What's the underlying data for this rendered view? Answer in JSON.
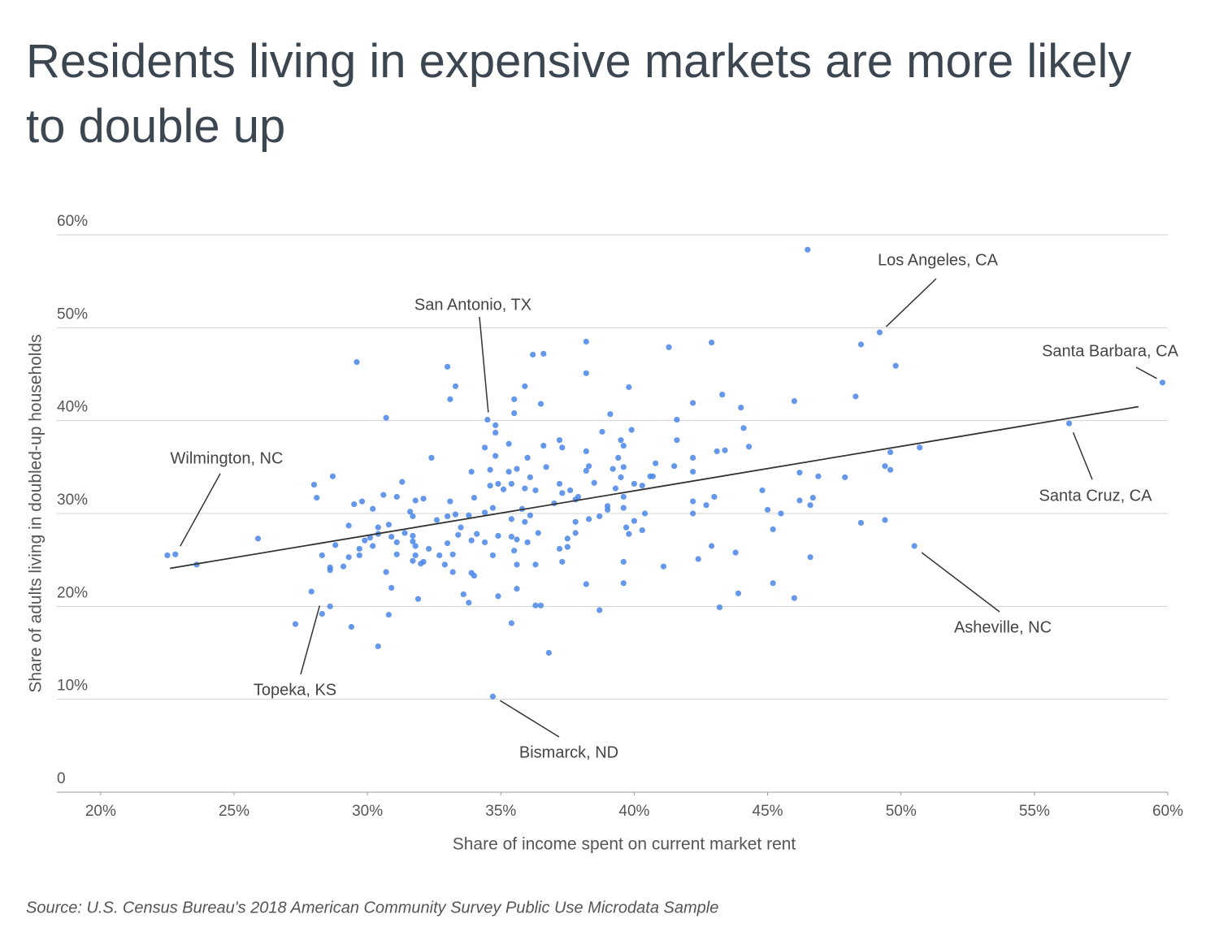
{
  "chart_data": {
    "type": "scatter",
    "title": "Residents living in expensive markets are more likely to double up",
    "x_label": "Share of income spent on current market rent",
    "y_label": "Share of adults living in doubled-up households",
    "source": "Source: U.S. Census Bureau's 2018 American Community Survey Public Use Microdata Sample",
    "xlim": [
      18.36,
      60
    ],
    "ylim": [
      0,
      60
    ],
    "xticks": [
      {
        "value": 20,
        "label": "20%"
      },
      {
        "value": 25,
        "label": "25%"
      },
      {
        "value": 30,
        "label": "30%"
      },
      {
        "value": 35,
        "label": "35%"
      },
      {
        "value": 40,
        "label": "40%"
      },
      {
        "value": 45,
        "label": "45%"
      },
      {
        "value": 50,
        "label": "50%"
      },
      {
        "value": 55,
        "label": "55%"
      },
      {
        "value": 60,
        "label": "60%"
      }
    ],
    "yticks": [
      0,
      {
        "value": 10,
        "label": "10%"
      },
      {
        "value": 20,
        "label": "20%"
      },
      {
        "value": 30,
        "label": "30%"
      },
      {
        "value": 40,
        "label": "40%"
      },
      {
        "value": 50,
        "label": "50%"
      },
      {
        "value": 60,
        "label": "60%"
      }
    ],
    "grid": true,
    "color": "#4a86e8",
    "x": [
      22.5,
      23.6,
      25.9,
      27.3,
      27.9,
      28.0,
      28.1,
      28.3,
      28.6,
      28.6,
      28.6,
      28.7,
      28.8,
      29.1,
      29.3,
      29.3,
      29.4,
      29.5,
      29.6,
      29.7,
      29.7,
      29.8,
      29.9,
      30.1,
      30.2,
      30.2,
      30.4,
      30.4,
      30.4,
      30.6,
      30.7,
      30.7,
      30.8,
      30.8,
      30.9,
      30.9,
      31.1,
      31.1,
      31.1,
      31.3,
      31.4,
      31.6,
      31.7,
      31.7,
      31.7,
      31.7,
      31.8,
      31.8,
      31.8,
      31.9,
      32.0,
      32.1,
      32.1,
      32.3,
      32.4,
      32.6,
      32.7,
      32.9,
      33.0,
      33.0,
      33.0,
      33.1,
      33.1,
      33.2,
      33.2,
      33.3,
      33.3,
      33.4,
      33.5,
      33.6,
      33.8,
      33.8,
      33.9,
      33.9,
      33.9,
      34.0,
      34.0,
      34.1,
      34.4,
      34.4,
      34.4,
      34.6,
      34.6,
      34.7,
      34.7,
      34.8,
      34.8,
      34.8,
      34.9,
      34.9,
      34.9,
      35.1,
      35.3,
      35.3,
      35.4,
      35.4,
      35.4,
      35.4,
      35.5,
      35.5,
      35.5,
      35.6,
      35.6,
      35.6,
      35.6,
      35.8,
      35.9,
      35.9,
      35.9,
      36.0,
      36.0,
      36.1,
      36.1,
      36.2,
      36.3,
      36.3,
      36.3,
      36.4,
      36.5,
      36.5,
      36.6,
      36.6,
      36.7,
      36.8,
      37.0,
      37.2,
      37.2,
      37.2,
      37.3,
      37.3,
      37.3,
      37.5,
      37.5,
      37.6,
      37.8,
      37.8,
      37.8,
      37.9,
      38.2,
      38.2,
      38.2,
      38.2,
      38.2,
      38.3,
      38.3,
      38.5,
      38.7,
      38.7,
      38.8,
      39.0,
      39.0,
      39.1,
      39.2,
      39.3,
      39.4,
      39.5,
      39.5,
      39.6,
      39.6,
      39.6,
      39.6,
      39.6,
      39.6,
      39.7,
      39.8,
      39.8,
      39.9,
      40.0,
      40.0,
      40.3,
      40.3,
      40.4,
      40.6,
      40.7,
      40.8,
      41.1,
      41.3,
      41.5,
      41.6,
      41.6,
      42.2,
      42.2,
      42.2,
      42.2,
      42.2,
      42.4,
      42.7,
      42.9,
      42.9,
      43.0,
      43.1,
      43.2,
      43.3,
      43.4,
      43.8,
      43.9,
      44.0,
      44.1,
      44.3,
      44.8,
      45.0,
      45.2,
      45.2,
      45.5,
      46.0,
      46.0,
      46.2,
      46.2,
      46.5,
      46.6,
      46.6,
      46.7,
      46.9,
      47.9,
      48.3,
      48.5,
      48.5,
      49.4,
      49.4,
      49.6,
      49.6,
      49.8,
      50.7
    ],
    "y": [
      25.5,
      24.5,
      27.3,
      18.1,
      21.6,
      33.1,
      31.7,
      25.5,
      24.2,
      23.9,
      20.0,
      34.0,
      26.6,
      24.3,
      25.3,
      28.7,
      17.8,
      31.0,
      46.3,
      26.2,
      25.5,
      31.3,
      27.1,
      27.4,
      26.5,
      30.5,
      15.7,
      28.5,
      27.8,
      32.0,
      40.3,
      23.7,
      19.1,
      28.8,
      27.5,
      22.0,
      31.8,
      25.6,
      26.9,
      33.4,
      27.9,
      30.2,
      24.9,
      29.7,
      27.6,
      27.0,
      31.4,
      25.5,
      26.5,
      20.8,
      24.6,
      24.8,
      31.6,
      26.2,
      36.0,
      29.3,
      25.5,
      24.5,
      45.8,
      26.8,
      29.7,
      31.3,
      42.3,
      25.6,
      23.7,
      43.7,
      29.9,
      27.7,
      28.5,
      21.3,
      29.8,
      20.4,
      34.5,
      27.1,
      23.6,
      23.3,
      31.7,
      27.8,
      37.1,
      30.1,
      26.9,
      33.0,
      34.7,
      25.5,
      30.6,
      39.5,
      38.7,
      36.2,
      33.2,
      21.1,
      27.6,
      32.6,
      37.5,
      34.5,
      33.2,
      18.2,
      29.4,
      27.5,
      42.3,
      40.8,
      26.0,
      21.9,
      24.5,
      34.8,
      27.2,
      30.5,
      32.7,
      29.1,
      43.7,
      26.9,
      36.0,
      33.9,
      29.8,
      47.1,
      24.5,
      20.1,
      32.5,
      27.9,
      41.8,
      20.1,
      47.2,
      37.3,
      35.0,
      15.0,
      31.1,
      37.9,
      26.2,
      33.2,
      32.2,
      24.8,
      37.1,
      26.4,
      27.3,
      32.5,
      31.5,
      29.1,
      27.9,
      31.8,
      36.7,
      48.5,
      34.6,
      45.1,
      22.4,
      35.1,
      29.4,
      33.3,
      29.7,
      19.6,
      38.8,
      30.8,
      30.4,
      40.7,
      34.8,
      32.7,
      36.0,
      37.9,
      33.9,
      30.6,
      37.3,
      24.8,
      22.5,
      35.0,
      31.8,
      28.5,
      43.6,
      27.8,
      39.0,
      29.2,
      33.2,
      33.0,
      28.2,
      30.0,
      34.0,
      34.0,
      35.4,
      24.3,
      47.9,
      35.1,
      40.1,
      37.9,
      41.9,
      34.5,
      36.0,
      31.3,
      30.0,
      25.1,
      30.9,
      48.4,
      26.5,
      31.8,
      36.7,
      19.9,
      42.8,
      36.8,
      25.8,
      21.4,
      41.4,
      39.2,
      37.2,
      32.5,
      30.4,
      28.3,
      22.5,
      30.0,
      42.1,
      20.9,
      34.4,
      31.4,
      58.4,
      25.3,
      30.9,
      31.7,
      34.0,
      33.9,
      42.6,
      48.2,
      29.0,
      35.1,
      29.3,
      36.6,
      34.7,
      45.9,
      37.1
    ],
    "annotations": [
      {
        "text": "Wilmington, NC",
        "x": 22.8,
        "y": 25.6
      },
      {
        "text": "Topeka, KS",
        "x": 28.3,
        "y": 19.2
      },
      {
        "text": "Bismarck, ND",
        "x": 34.7,
        "y": 10.3
      },
      {
        "text": "San Antonio, TX",
        "x": 34.5,
        "y": 40.1
      },
      {
        "text": "Los Angeles, CA",
        "x": 49.2,
        "y": 49.5
      },
      {
        "text": "Santa Barbara, CA",
        "x": 59.8,
        "y": 44.1
      },
      {
        "text": "Santa Cruz, CA",
        "x": 56.3,
        "y": 39.7
      },
      {
        "text": "Asheville, NC",
        "x": 50.5,
        "y": 26.5
      }
    ],
    "trendline": {
      "x": [
        22.6,
        58.9
      ],
      "y": [
        24.1,
        41.5
      ]
    }
  }
}
